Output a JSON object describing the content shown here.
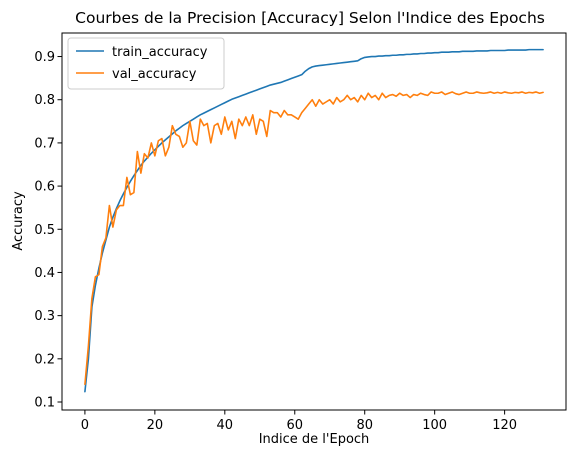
{
  "chart_data": {
    "type": "line",
    "title": "Courbes de la Precision [Accuracy] Selon l'Indice des Epochs",
    "xlabel": "Indice de l'Epoch",
    "ylabel": "Accuracy",
    "xlim": [
      -6.55,
      137.55
    ],
    "ylim": [
      0.0815,
      0.9545
    ],
    "xticks": [
      0,
      20,
      40,
      60,
      80,
      100,
      120
    ],
    "yticks": [
      0.1,
      0.2,
      0.3,
      0.4,
      0.5,
      0.6,
      0.7,
      0.8,
      0.9
    ],
    "grid": false,
    "legend_position": "upper left",
    "series": [
      {
        "name": "train_accuracy",
        "color": "#1f77b4",
        "values": [
          0.124,
          0.2,
          0.32,
          0.37,
          0.41,
          0.445,
          0.475,
          0.505,
          0.528,
          0.548,
          0.566,
          0.582,
          0.597,
          0.611,
          0.624,
          0.636,
          0.648,
          0.658,
          0.667,
          0.676,
          0.684,
          0.692,
          0.7,
          0.707,
          0.714,
          0.721,
          0.728,
          0.734,
          0.74,
          0.745,
          0.75,
          0.755,
          0.76,
          0.765,
          0.769,
          0.773,
          0.777,
          0.781,
          0.785,
          0.789,
          0.793,
          0.797,
          0.801,
          0.804,
          0.807,
          0.81,
          0.813,
          0.816,
          0.819,
          0.822,
          0.825,
          0.828,
          0.831,
          0.834,
          0.836,
          0.838,
          0.84,
          0.843,
          0.846,
          0.849,
          0.852,
          0.855,
          0.858,
          0.866,
          0.872,
          0.876,
          0.878,
          0.879,
          0.88,
          0.881,
          0.882,
          0.883,
          0.884,
          0.885,
          0.886,
          0.887,
          0.888,
          0.889,
          0.89,
          0.895,
          0.898,
          0.899,
          0.9,
          0.9,
          0.901,
          0.901,
          0.902,
          0.902,
          0.903,
          0.903,
          0.904,
          0.904,
          0.905,
          0.905,
          0.906,
          0.906,
          0.907,
          0.907,
          0.908,
          0.908,
          0.909,
          0.909,
          0.91,
          0.91,
          0.91,
          0.911,
          0.911,
          0.911,
          0.912,
          0.912,
          0.912,
          0.912,
          0.913,
          0.913,
          0.913,
          0.913,
          0.914,
          0.914,
          0.914,
          0.914,
          0.914,
          0.915,
          0.915,
          0.915,
          0.915,
          0.915,
          0.915,
          0.916,
          0.916,
          0.916,
          0.916,
          0.916
        ]
      },
      {
        "name": "val_accuracy",
        "color": "#ff7f0e",
        "values": [
          0.141,
          0.23,
          0.34,
          0.39,
          0.395,
          0.46,
          0.48,
          0.555,
          0.505,
          0.545,
          0.555,
          0.555,
          0.62,
          0.58,
          0.585,
          0.68,
          0.63,
          0.675,
          0.665,
          0.7,
          0.67,
          0.705,
          0.71,
          0.67,
          0.69,
          0.74,
          0.72,
          0.715,
          0.69,
          0.7,
          0.75,
          0.705,
          0.695,
          0.755,
          0.74,
          0.745,
          0.7,
          0.74,
          0.745,
          0.72,
          0.76,
          0.73,
          0.75,
          0.71,
          0.755,
          0.74,
          0.76,
          0.74,
          0.765,
          0.72,
          0.755,
          0.75,
          0.715,
          0.775,
          0.77,
          0.77,
          0.76,
          0.775,
          0.765,
          0.765,
          0.76,
          0.755,
          0.77,
          0.78,
          0.79,
          0.8,
          0.785,
          0.8,
          0.79,
          0.795,
          0.8,
          0.79,
          0.805,
          0.795,
          0.8,
          0.81,
          0.8,
          0.805,
          0.795,
          0.81,
          0.8,
          0.815,
          0.805,
          0.81,
          0.8,
          0.815,
          0.805,
          0.81,
          0.812,
          0.808,
          0.815,
          0.81,
          0.812,
          0.805,
          0.812,
          0.81,
          0.815,
          0.812,
          0.81,
          0.818,
          0.815,
          0.815,
          0.818,
          0.812,
          0.815,
          0.818,
          0.814,
          0.812,
          0.815,
          0.818,
          0.815,
          0.815,
          0.818,
          0.816,
          0.815,
          0.816,
          0.818,
          0.815,
          0.817,
          0.815,
          0.818,
          0.816,
          0.815,
          0.817,
          0.816,
          0.818,
          0.815,
          0.817,
          0.816,
          0.818,
          0.815,
          0.817
        ]
      }
    ]
  }
}
